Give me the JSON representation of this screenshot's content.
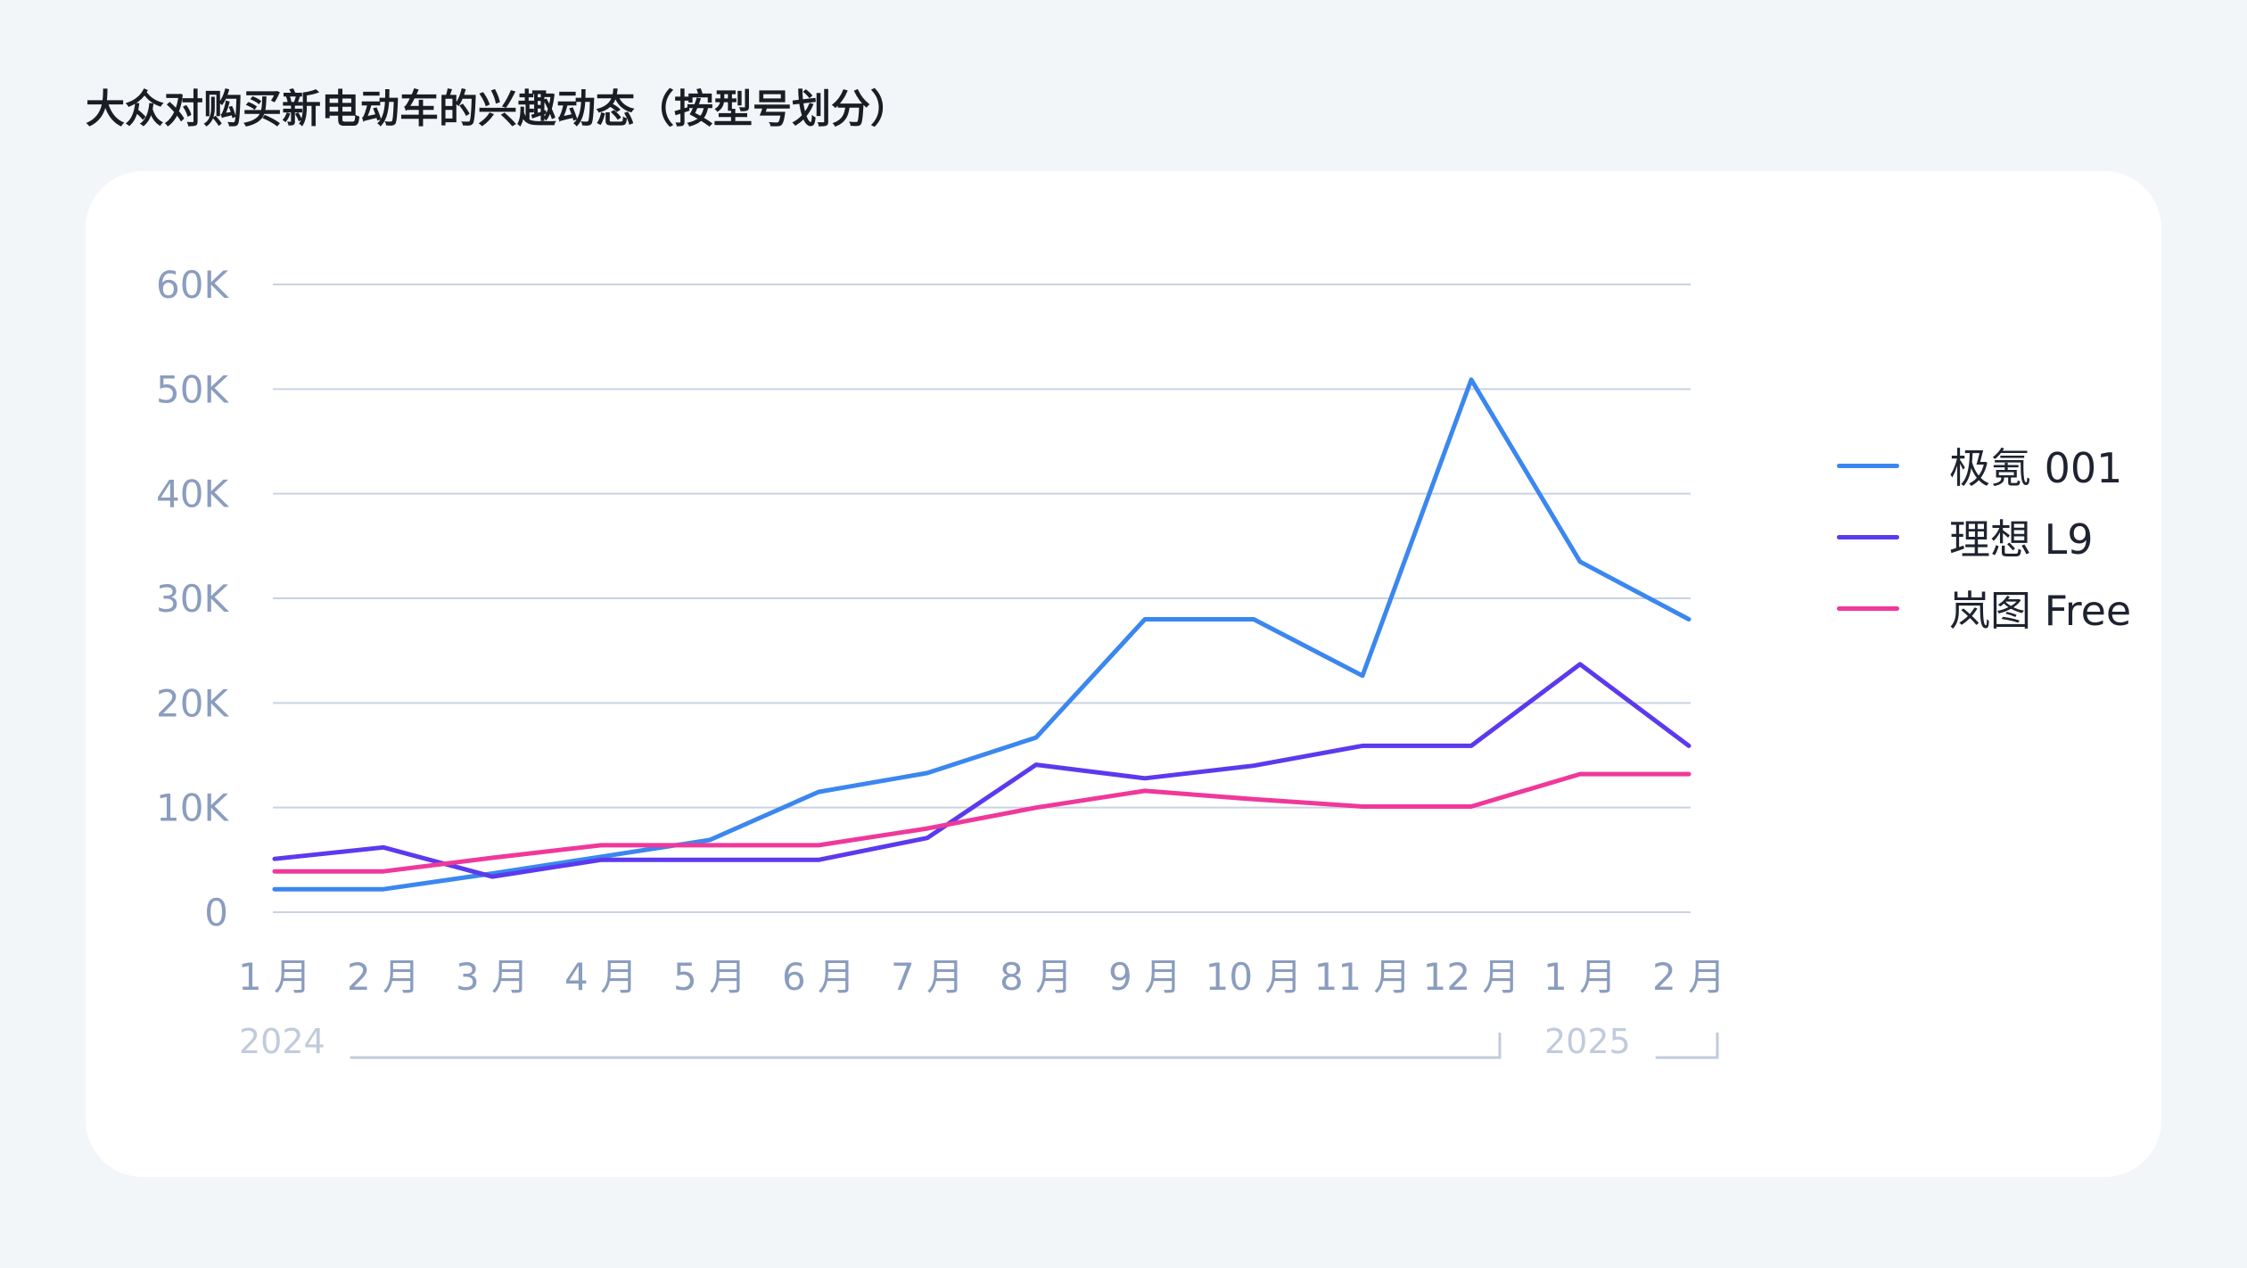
{
  "title": "大众对购买新电动车的兴趣动态（按型号划分）",
  "colors": {
    "zeekr": "#3b87ef",
    "lixiang": "#5b3aee",
    "voyah": "#f0389a",
    "grid": "#c9d3e3",
    "axis_text": "#8b9dbe",
    "year_text": "#c1cbdc"
  },
  "chart_data": {
    "type": "line",
    "title": "大众对购买新电动车的兴趣动态（按型号划分）",
    "categories": [
      "1 月",
      "2 月",
      "3 月",
      "4 月",
      "5 月",
      "6 月",
      "7 月",
      "8 月",
      "9 月",
      "10 月",
      "11 月",
      "12 月",
      "1 月",
      "2 月"
    ],
    "year_groups": [
      {
        "label": "2024",
        "from": 0,
        "to": 11
      },
      {
        "label": "2025",
        "from": 12,
        "to": 13
      }
    ],
    "y_ticks": [
      "0",
      "10K",
      "20K",
      "30K",
      "40K",
      "50K",
      "60K"
    ],
    "ylim": [
      0,
      60000
    ],
    "grid": true,
    "legend_position": "right",
    "series": [
      {
        "name": "极氪 001",
        "color_key": "zeekr",
        "values": [
          2200,
          2200,
          3700,
          5300,
          6900,
          11500,
          13300,
          16700,
          28000,
          28000,
          22600,
          50900,
          33500,
          28000
        ]
      },
      {
        "name": "理想 L9",
        "color_key": "lixiang",
        "values": [
          5100,
          6200,
          3400,
          5000,
          5000,
          5000,
          7100,
          14100,
          12800,
          14000,
          15900,
          15900,
          23700,
          15900
        ]
      },
      {
        "name": "岚图 Free",
        "color_key": "voyah",
        "values": [
          3900,
          3900,
          5200,
          6400,
          6400,
          6400,
          8000,
          10000,
          11600,
          10800,
          10100,
          10100,
          13200,
          13200
        ]
      }
    ]
  }
}
